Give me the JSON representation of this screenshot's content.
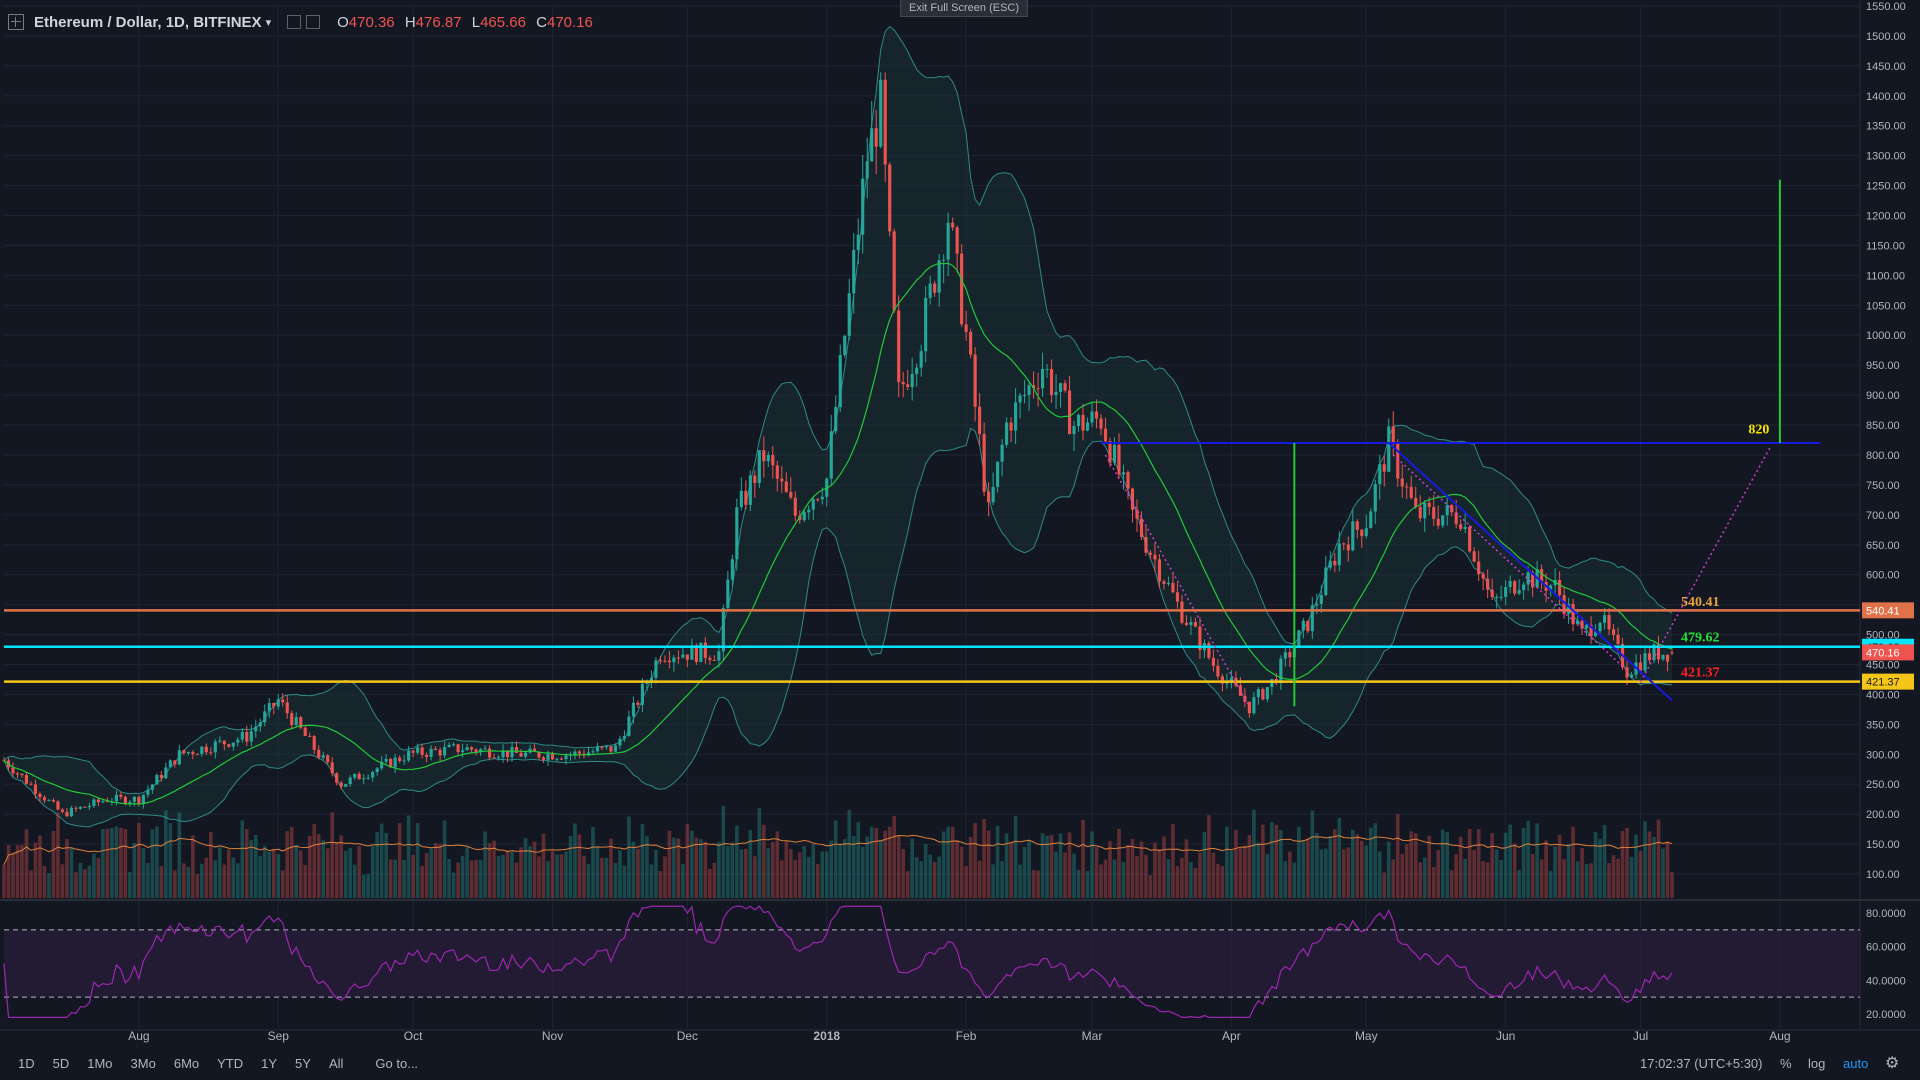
{
  "header": {
    "symbol_title": "Ethereum / Dollar, 1D, BITFINEX",
    "ohlc": [
      {
        "k": "O",
        "v": "470.36"
      },
      {
        "k": "H",
        "v": "476.87"
      },
      {
        "k": "L",
        "v": "465.66"
      },
      {
        "k": "C",
        "v": "470.16"
      }
    ]
  },
  "exit_fullscreen": "Exit Full Screen (ESC)",
  "bottom_bar": {
    "timeframes": [
      "1D",
      "5D",
      "1Mo",
      "3Mo",
      "6Mo",
      "YTD",
      "1Y",
      "5Y",
      "All"
    ],
    "goto": "Go to...",
    "clock": "17:02:37 (UTC+5:30)",
    "percent": "%",
    "log": "log",
    "auto": "auto"
  },
  "colors": {
    "background": "#131722",
    "grid": "#1f2433",
    "candle_up": "#26a69a",
    "candle_down": "#ef5350",
    "sma": "#22c93b",
    "bollinger": "#2e8a8a",
    "volume_ma": "#e0813a",
    "rsi": "#9c27b0",
    "trendline": "#1a1adc",
    "resistance_orange": "#e0724a",
    "support_cyan": "#00e5ff",
    "support_yellow": "#f5c518"
  },
  "chart_data": {
    "type": "candlestick",
    "symbol": "Ethereum / Dollar",
    "interval": "1D",
    "exchange": "BITFINEX",
    "price_axis_ticks": [
      1550,
      1500,
      1450,
      1400,
      1350,
      1300,
      1250,
      1200,
      1150,
      1100,
      1050,
      1000,
      950,
      900,
      850,
      800,
      750,
      700,
      650,
      600,
      550,
      500,
      450,
      400,
      350,
      300,
      250,
      200,
      150,
      100
    ],
    "price_axis_labels": [
      "1550.00",
      "1500.00",
      "1450.00",
      "1400.00",
      "1350.00",
      "1300.00",
      "1250.00",
      "1200.00",
      "1150.00",
      "1100.00",
      "1050.00",
      "1000.00",
      "950.00",
      "900.00",
      "850.00",
      "800.00",
      "750.00",
      "700.00",
      "650.00",
      "600.00",
      "",
      "500.00",
      "450.00",
      "400.00",
      "350.00",
      "300.00",
      "250.00",
      "200.00",
      "150.00",
      "100.00"
    ],
    "rsi_axis_ticks": [
      80,
      60,
      40,
      20
    ],
    "rsi_axis_labels": [
      "80.0000",
      "60.0000",
      "40.0000",
      "20.0000"
    ],
    "time_axis": [
      {
        "label": "Aug",
        "date": "2017-08-01"
      },
      {
        "label": "Sep",
        "date": "2017-09-01"
      },
      {
        "label": "Oct",
        "date": "2017-10-01"
      },
      {
        "label": "Nov",
        "date": "2017-11-01"
      },
      {
        "label": "Dec",
        "date": "2017-12-01"
      },
      {
        "label": "2018",
        "date": "2018-01-01"
      },
      {
        "label": "Feb",
        "date": "2018-02-01"
      },
      {
        "label": "Mar",
        "date": "2018-03-01"
      },
      {
        "label": "Apr",
        "date": "2018-04-01"
      },
      {
        "label": "May",
        "date": "2018-05-01"
      },
      {
        "label": "Jun",
        "date": "2018-06-01"
      },
      {
        "label": "Jul",
        "date": "2018-07-01"
      },
      {
        "label": "Aug",
        "date": "2018-08-01"
      }
    ],
    "price_path": [
      [
        "2017-07-02",
        290
      ],
      [
        "2017-07-15",
        200
      ],
      [
        "2017-07-25",
        225
      ],
      [
        "2017-08-01",
        225
      ],
      [
        "2017-08-10",
        300
      ],
      [
        "2017-08-25",
        330
      ],
      [
        "2017-09-01",
        390
      ],
      [
        "2017-09-15",
        250
      ],
      [
        "2017-09-30",
        300
      ],
      [
        "2017-10-12",
        310
      ],
      [
        "2017-10-25",
        300
      ],
      [
        "2017-11-05",
        300
      ],
      [
        "2017-11-15",
        310
      ],
      [
        "2017-11-25",
        470
      ],
      [
        "2017-12-08",
        470
      ],
      [
        "2017-12-12",
        700
      ],
      [
        "2017-12-18",
        800
      ],
      [
        "2017-12-25",
        700
      ],
      [
        "2018-01-01",
        760
      ],
      [
        "2018-01-05",
        1000
      ],
      [
        "2018-01-10",
        1300
      ],
      [
        "2018-01-13",
        1380
      ],
      [
        "2018-01-17",
        900
      ],
      [
        "2018-01-22",
        1000
      ],
      [
        "2018-01-28",
        1200
      ],
      [
        "2018-02-01",
        1000
      ],
      [
        "2018-02-06",
        700
      ],
      [
        "2018-02-10",
        850
      ],
      [
        "2018-02-18",
        950
      ],
      [
        "2018-02-25",
        850
      ],
      [
        "2018-03-03",
        860
      ],
      [
        "2018-03-10",
        700
      ],
      [
        "2018-03-20",
        550
      ],
      [
        "2018-03-28",
        450
      ],
      [
        "2018-04-05",
        380
      ],
      [
        "2018-04-10",
        420
      ],
      [
        "2018-04-18",
        520
      ],
      [
        "2018-04-25",
        650
      ],
      [
        "2018-05-01",
        690
      ],
      [
        "2018-05-06",
        820
      ],
      [
        "2018-05-12",
        700
      ],
      [
        "2018-05-22",
        700
      ],
      [
        "2018-05-29",
        550
      ],
      [
        "2018-06-05",
        600
      ],
      [
        "2018-06-12",
        580
      ],
      [
        "2018-06-18",
        500
      ],
      [
        "2018-06-22",
        530
      ],
      [
        "2018-06-28",
        440
      ],
      [
        "2018-07-04",
        470
      ]
    ],
    "last": {
      "open": 470.36,
      "high": 476.87,
      "low": 465.66,
      "close": 470.16
    },
    "horizontal_levels": [
      {
        "value": 540.41,
        "label": "540.41",
        "color": "#e0724a"
      },
      {
        "value": 479.62,
        "label": "479.62",
        "color": "#00e5ff"
      },
      {
        "value": 421.37,
        "label": "421.37",
        "color": "#f5c518"
      }
    ],
    "price_badges": [
      {
        "value": 540.41,
        "label": "540.41",
        "color": "#e0724a"
      },
      {
        "value": 479.62,
        "label": "479.62",
        "color": "#00e5ff"
      },
      {
        "value": 470.16,
        "label": "470.16",
        "color": "#ef5350"
      },
      {
        "value": 421.37,
        "label": "421.37",
        "color": "#f5c518"
      }
    ],
    "annotations": [
      {
        "text": "820",
        "color": "#f5e400"
      },
      {
        "text": "540.41",
        "color": "#e6a23c"
      },
      {
        "text": "479.62",
        "color": "#22e033"
      },
      {
        "text": "421.37",
        "color": "#ff2020"
      }
    ],
    "neckline": {
      "value": 820,
      "from": "2018-03-03",
      "to": "2018-08-10"
    },
    "target_bar": {
      "date": "2018-08-01",
      "from": 820,
      "to": 1260
    },
    "measure_bar": {
      "date": "2018-04-15",
      "from": 820,
      "to": 380
    },
    "downtrend": {
      "from": [
        "2018-05-06",
        820
      ],
      "to": [
        "2018-07-08",
        390
      ]
    },
    "projection": {
      "from": [
        "2018-07-01",
        421
      ],
      "to": [
        "2018-07-30",
        815
      ]
    },
    "rsi": {
      "period": 14,
      "overbought": 70,
      "oversold": 30
    }
  }
}
